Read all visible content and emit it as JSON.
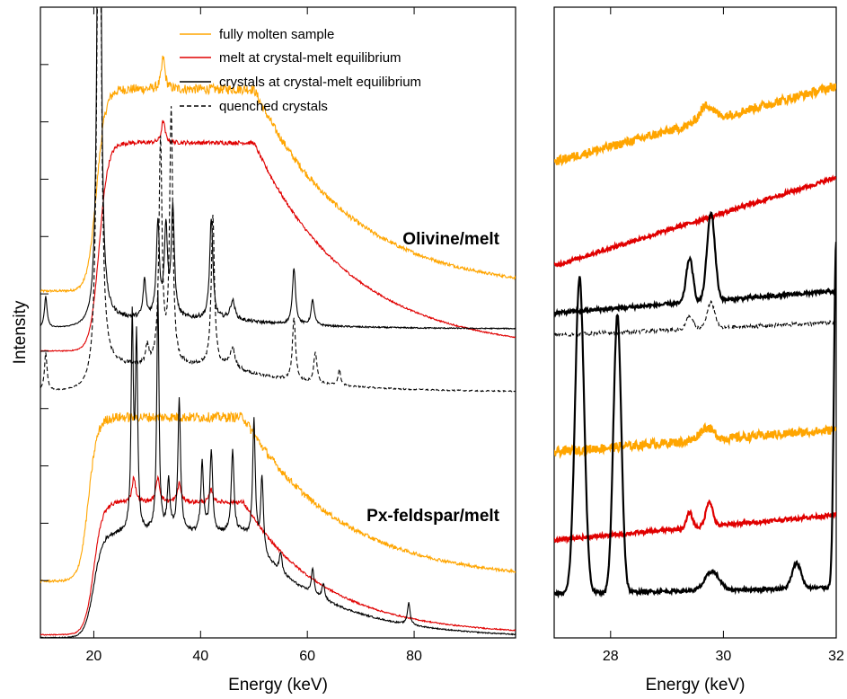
{
  "ylabel": "Intensity",
  "chart_data": [
    {
      "type": "line",
      "panel": "left",
      "xlabel": "Energy (keV)",
      "ylabel": "Intensity",
      "xlim": [
        10,
        99
      ],
      "ylim": [
        0,
        100
      ],
      "xticks": [
        20,
        40,
        60,
        80
      ],
      "annotations": [
        "Olivine/melt",
        "Px-feldspar/melt"
      ],
      "legend": {
        "position": "top-right",
        "entries": [
          {
            "label": "fully molten sample",
            "color": "#FFA500",
            "dash": "solid"
          },
          {
            "label": "melt at crystal-melt equilibrium",
            "color": "#E00000",
            "dash": "solid"
          },
          {
            "label": "crystals at crystal-melt equilibrium",
            "color": "#000000",
            "dash": "solid"
          },
          {
            "label": "quenched crystals",
            "color": "#000000",
            "dash": "dashed"
          }
        ]
      },
      "series": [
        {
          "group": "Olivine/melt",
          "color": "#FFA500",
          "dash": "solid",
          "base": 55,
          "amp": 32,
          "x0": 20.5,
          "x1": 50,
          "decay": 18,
          "tail": 1,
          "peaks": [
            [
              33,
              5,
              0.4
            ]
          ]
        },
        {
          "group": "Olivine/melt",
          "color": "#E00000",
          "dash": "solid",
          "base": 45.5,
          "amp": 33,
          "x0": 21,
          "x1": 50,
          "decay": 18,
          "tail": 2,
          "peaks": [
            [
              33,
              3.5,
              0.4
            ]
          ]
        },
        {
          "group": "Olivine/melt",
          "color": "#000000",
          "dash": "solid",
          "base": 49,
          "amp": 1.5,
          "x0": 21,
          "x1": 45,
          "decay": 15,
          "tail": 1,
          "peaks": [
            [
              11,
              5,
              0.3
            ],
            [
              21,
              120,
              0.35
            ],
            [
              29.5,
              6,
              0.3
            ],
            [
              32,
              15,
              0.35
            ],
            [
              33.5,
              14,
              0.35
            ],
            [
              34.8,
              17,
              0.35
            ],
            [
              42,
              16,
              0.35
            ],
            [
              46,
              3,
              0.5
            ],
            [
              57.5,
              9,
              0.35
            ],
            [
              61,
              4,
              0.35
            ]
          ]
        },
        {
          "group": "Olivine/melt",
          "color": "#000000",
          "dash": "dashed",
          "base": 39,
          "amp": 4,
          "x0": 21,
          "x1": 45,
          "decay": 15,
          "tail": 1,
          "peaks": [
            [
              11,
              6,
              0.3
            ],
            [
              21,
              110,
              0.4
            ],
            [
              30,
              3,
              0.3
            ],
            [
              32.5,
              35,
              0.35
            ],
            [
              34.5,
              40,
              0.35
            ],
            [
              42.3,
              24,
              0.35
            ],
            [
              46,
              3,
              0.5
            ],
            [
              57.5,
              10,
              0.35
            ],
            [
              61.5,
              5,
              0.35
            ],
            [
              66,
              2.5,
              0.3
            ]
          ]
        },
        {
          "group": "Px-feldspar/melt",
          "color": "#FFA500",
          "dash": "solid",
          "base": 9,
          "amp": 26,
          "x0": 19,
          "x1": 48,
          "decay": 18,
          "tail": 1,
          "peaks": []
        },
        {
          "group": "Px-feldspar/melt",
          "color": "#E00000",
          "dash": "solid",
          "base": 0.5,
          "amp": 21,
          "x0": 20,
          "x1": 48,
          "decay": 15,
          "tail": 1,
          "peaks": [
            [
              27.5,
              4,
              0.4
            ],
            [
              32,
              4,
              0.4
            ],
            [
              36,
              3,
              0.4
            ],
            [
              42,
              2,
              0.4
            ]
          ]
        },
        {
          "group": "Px-feldspar/melt",
          "color": "#000000",
          "dash": "solid",
          "base": 0,
          "amp": 16.5,
          "x0": 20,
          "x1": 48,
          "decay": 15,
          "tail": 1,
          "peaks": [
            [
              27.2,
              33,
              0.25
            ],
            [
              28,
              30,
              0.25
            ],
            [
              32,
              38,
              0.25
            ],
            [
              34,
              8,
              0.3
            ],
            [
              36,
              21,
              0.3
            ],
            [
              40.3,
              11,
              0.3
            ],
            [
              42,
              13,
              0.3
            ],
            [
              46,
              13,
              0.3
            ],
            [
              50,
              20,
              0.3
            ],
            [
              51.5,
              12,
              0.3
            ],
            [
              55,
              3,
              0.3
            ],
            [
              61,
              4,
              0.3
            ],
            [
              63,
              2.5,
              0.3
            ],
            [
              79,
              3.5,
              0.3
            ]
          ]
        }
      ]
    },
    {
      "type": "line",
      "panel": "right",
      "xlabel": "Energy (keV)",
      "xlim": [
        27,
        32
      ],
      "ylim": [
        0,
        100
      ],
      "xticks": [
        28,
        30,
        32
      ],
      "series": [
        {
          "group": "Olivine/melt",
          "color": "#FFA500",
          "dash": "solid",
          "y0": 75.5,
          "y1": 87.5,
          "peaks": [
            [
              29.7,
              2.5,
              0.12
            ]
          ]
        },
        {
          "group": "Olivine/melt",
          "color": "#E00000",
          "dash": "solid",
          "y0": 59,
          "y1": 73,
          "peaks": []
        },
        {
          "group": "Olivine/melt",
          "color": "#000000",
          "dash": "solid",
          "y0": 51.5,
          "y1": 55,
          "peaks": [
            [
              29.4,
              7,
              0.06
            ],
            [
              29.78,
              14,
              0.07
            ]
          ]
        },
        {
          "group": "Olivine/melt",
          "color": "#000000",
          "dash": "dashed",
          "y0": 48,
          "y1": 50,
          "peaks": [
            [
              29.4,
              2,
              0.06
            ],
            [
              29.78,
              4,
              0.07
            ]
          ]
        },
        {
          "group": "Px-feldspar/melt",
          "color": "#FFA500",
          "dash": "solid",
          "y0": 29.5,
          "y1": 33,
          "peaks": [
            [
              29.7,
              2,
              0.12
            ]
          ]
        },
        {
          "group": "Px-feldspar/melt",
          "color": "#E00000",
          "dash": "solid",
          "y0": 15.5,
          "y1": 19.5,
          "peaks": [
            [
              29.4,
              2.5,
              0.05
            ],
            [
              29.75,
              4,
              0.06
            ]
          ]
        },
        {
          "group": "Px-feldspar/melt",
          "color": "#000000",
          "dash": "solid",
          "y0": 7,
          "y1": 8,
          "peaks": [
            [
              27.45,
              50,
              0.08
            ],
            [
              28.12,
              44,
              0.07
            ],
            [
              29.8,
              3,
              0.12
            ],
            [
              31.3,
              4,
              0.08
            ],
            [
              32.0,
              55,
              0.04
            ]
          ]
        }
      ]
    }
  ]
}
